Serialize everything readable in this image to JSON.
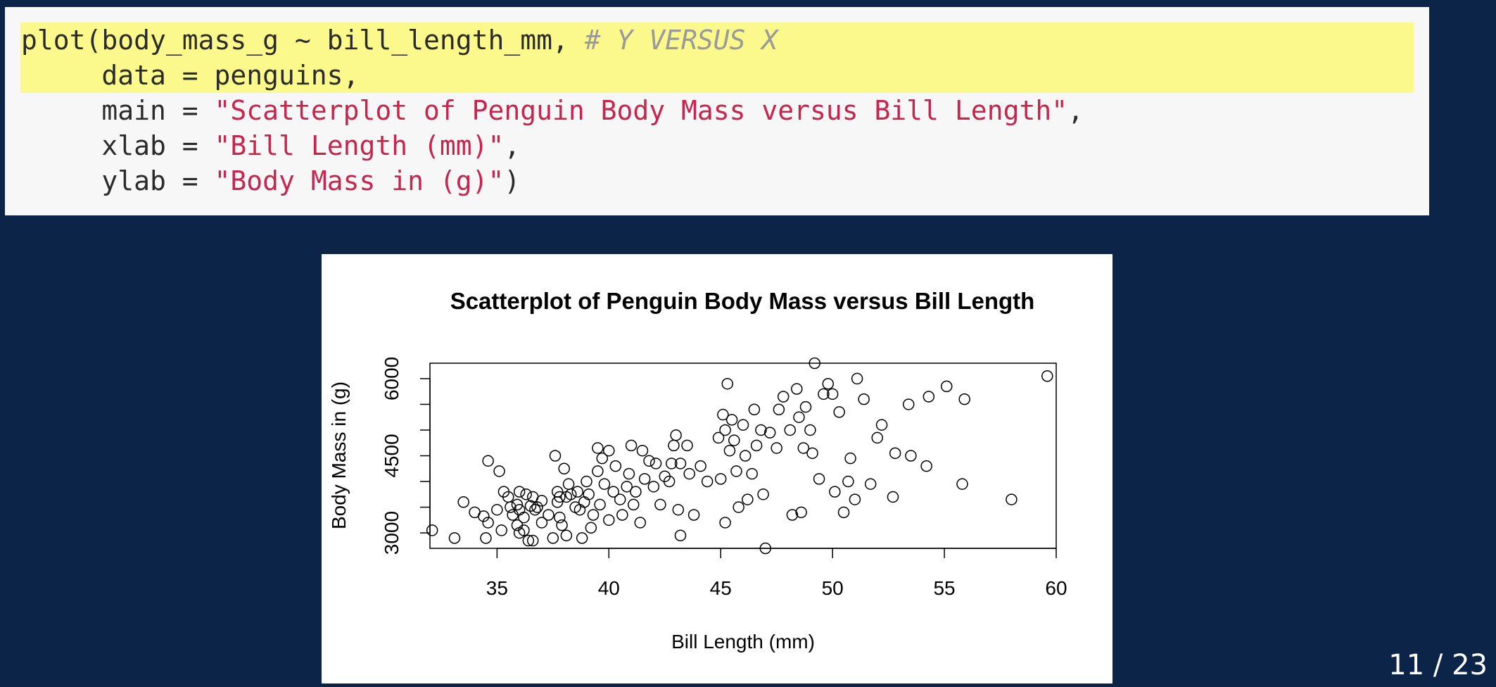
{
  "code": {
    "lines": [
      {
        "parts": [
          {
            "t": "plain",
            "s": "plot(body_mass_g ~ bill_length_mm, "
          },
          {
            "t": "cmt",
            "s": "# Y VERSUS X"
          }
        ],
        "highlight": true
      },
      {
        "parts": [
          {
            "t": "plain",
            "s": "     data = penguins,"
          }
        ],
        "highlight": true
      },
      {
        "parts": [
          {
            "t": "plain",
            "s": "     main = "
          },
          {
            "t": "str",
            "s": "\"Scatterplot of Penguin Body Mass versus Bill Length\""
          },
          {
            "t": "plain",
            "s": ","
          }
        ],
        "highlight": false
      },
      {
        "parts": [
          {
            "t": "plain",
            "s": "     xlab = "
          },
          {
            "t": "str",
            "s": "\"Bill Length (mm)\""
          },
          {
            "t": "plain",
            "s": ","
          }
        ],
        "highlight": false
      },
      {
        "parts": [
          {
            "t": "plain",
            "s": "     ylab = "
          },
          {
            "t": "str",
            "s": "\"Body Mass in (g)\""
          },
          {
            "t": "plain",
            "s": ")"
          }
        ],
        "highlight": false
      }
    ]
  },
  "pager": {
    "text": "11 / 23"
  },
  "chart_data": {
    "type": "scatter",
    "title": "Scatterplot of Penguin Body Mass versus Bill Length",
    "xlabel": "Bill Length (mm)",
    "ylabel": "Body Mass in (g)",
    "xlim": [
      32,
      60
    ],
    "ylim": [
      2700,
      6300
    ],
    "xticks": [
      35,
      40,
      45,
      50,
      55,
      60
    ],
    "yticks": [
      3000,
      3500,
      4000,
      4500,
      5000,
      5500,
      6000
    ],
    "ytick_labels": [
      "3000",
      "",
      "",
      "4500",
      "",
      "",
      "6000"
    ],
    "grid": false,
    "marker": "open-circle",
    "points": [
      [
        32.1,
        3050
      ],
      [
        33.1,
        2900
      ],
      [
        33.5,
        3600
      ],
      [
        34.0,
        3400
      ],
      [
        34.4,
        3325
      ],
      [
        34.5,
        2900
      ],
      [
        34.6,
        4400
      ],
      [
        34.6,
        3200
      ],
      [
        35.0,
        3450
      ],
      [
        35.1,
        4200
      ],
      [
        35.2,
        3050
      ],
      [
        35.3,
        3800
      ],
      [
        35.5,
        3700
      ],
      [
        35.6,
        3500
      ],
      [
        35.7,
        3350
      ],
      [
        35.9,
        3550
      ],
      [
        35.9,
        3150
      ],
      [
        36.0,
        3800
      ],
      [
        36.0,
        3450
      ],
      [
        36.0,
        3000
      ],
      [
        36.2,
        3300
      ],
      [
        36.2,
        3050
      ],
      [
        36.3,
        3750
      ],
      [
        36.4,
        2850
      ],
      [
        36.5,
        3525
      ],
      [
        36.6,
        2850
      ],
      [
        36.6,
        3700
      ],
      [
        36.7,
        3450
      ],
      [
        36.8,
        3500
      ],
      [
        37.0,
        3625
      ],
      [
        37.0,
        3200
      ],
      [
        37.3,
        3350
      ],
      [
        37.5,
        2900
      ],
      [
        37.6,
        4500
      ],
      [
        37.7,
        3800
      ],
      [
        37.7,
        3600
      ],
      [
        37.8,
        3700
      ],
      [
        37.8,
        3300
      ],
      [
        37.9,
        3150
      ],
      [
        38.0,
        4250
      ],
      [
        38.1,
        3700
      ],
      [
        38.1,
        2950
      ],
      [
        38.2,
        3950
      ],
      [
        38.3,
        3750
      ],
      [
        38.5,
        3500
      ],
      [
        38.6,
        3800
      ],
      [
        38.7,
        3450
      ],
      [
        38.8,
        2900
      ],
      [
        38.9,
        3600
      ],
      [
        39.0,
        4000
      ],
      [
        39.1,
        3750
      ],
      [
        39.2,
        3100
      ],
      [
        39.3,
        3350
      ],
      [
        39.5,
        4650
      ],
      [
        39.5,
        4200
      ],
      [
        39.6,
        3550
      ],
      [
        39.7,
        4450
      ],
      [
        39.8,
        3950
      ],
      [
        40.0,
        4600
      ],
      [
        40.0,
        3250
      ],
      [
        40.2,
        3800
      ],
      [
        40.3,
        4300
      ],
      [
        40.5,
        3650
      ],
      [
        40.6,
        3350
      ],
      [
        40.8,
        3900
      ],
      [
        40.9,
        4150
      ],
      [
        41.0,
        4700
      ],
      [
        41.1,
        3550
      ],
      [
        41.2,
        3800
      ],
      [
        41.4,
        3200
      ],
      [
        41.5,
        4600
      ],
      [
        41.6,
        4050
      ],
      [
        41.8,
        4400
      ],
      [
        42.0,
        3900
      ],
      [
        42.1,
        4350
      ],
      [
        42.3,
        3550
      ],
      [
        42.5,
        4100
      ],
      [
        42.7,
        4000
      ],
      [
        42.8,
        4350
      ],
      [
        42.9,
        4700
      ],
      [
        43.0,
        4900
      ],
      [
        43.1,
        3450
      ],
      [
        43.2,
        4350
      ],
      [
        43.2,
        2950
      ],
      [
        43.5,
        4700
      ],
      [
        43.6,
        4150
      ],
      [
        43.8,
        3350
      ],
      [
        44.1,
        4300
      ],
      [
        44.4,
        4000
      ],
      [
        44.9,
        4850
      ],
      [
        45.0,
        4050
      ],
      [
        45.1,
        5300
      ],
      [
        45.2,
        5000
      ],
      [
        45.2,
        3200
      ],
      [
        45.3,
        5900
      ],
      [
        45.4,
        4600
      ],
      [
        45.5,
        5200
      ],
      [
        45.6,
        4800
      ],
      [
        45.7,
        4200
      ],
      [
        45.8,
        3500
      ],
      [
        46.0,
        5100
      ],
      [
        46.1,
        4500
      ],
      [
        46.2,
        3650
      ],
      [
        46.4,
        4150
      ],
      [
        46.5,
        5400
      ],
      [
        46.6,
        4700
      ],
      [
        46.8,
        5000
      ],
      [
        46.9,
        3750
      ],
      [
        47.0,
        2700
      ],
      [
        47.2,
        4950
      ],
      [
        47.5,
        4650
      ],
      [
        47.6,
        5400
      ],
      [
        47.8,
        5650
      ],
      [
        48.1,
        5000
      ],
      [
        48.2,
        3350
      ],
      [
        48.4,
        5800
      ],
      [
        48.5,
        5250
      ],
      [
        48.6,
        3400
      ],
      [
        48.7,
        4650
      ],
      [
        48.8,
        5450
      ],
      [
        49.0,
        5000
      ],
      [
        49.1,
        4550
      ],
      [
        49.2,
        6300
      ],
      [
        49.4,
        4050
      ],
      [
        49.6,
        5700
      ],
      [
        49.8,
        5900
      ],
      [
        50.0,
        5700
      ],
      [
        50.1,
        3800
      ],
      [
        50.3,
        5350
      ],
      [
        50.5,
        3400
      ],
      [
        50.7,
        4000
      ],
      [
        50.8,
        4450
      ],
      [
        51.0,
        3650
      ],
      [
        51.1,
        6000
      ],
      [
        51.4,
        5600
      ],
      [
        51.7,
        3950
      ],
      [
        52.0,
        4850
      ],
      [
        52.2,
        5100
      ],
      [
        52.7,
        3700
      ],
      [
        52.8,
        4550
      ],
      [
        53.4,
        5500
      ],
      [
        53.5,
        4500
      ],
      [
        54.2,
        4300
      ],
      [
        54.3,
        5650
      ],
      [
        55.1,
        5850
      ],
      [
        55.8,
        3950
      ],
      [
        55.9,
        5600
      ],
      [
        58.0,
        3650
      ],
      [
        59.6,
        6050
      ]
    ]
  }
}
